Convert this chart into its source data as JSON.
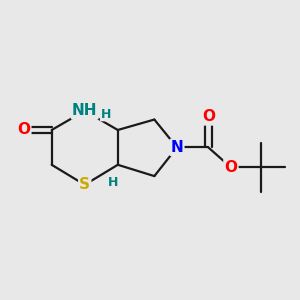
{
  "bg_color": "#e8e8e8",
  "atom_colors": {
    "O": "#ff0000",
    "N": "#0000ff",
    "S": "#ccaa00",
    "C": "#000000",
    "H": "#008080"
  },
  "bond_color": "#1a1a1a",
  "bond_width": 1.6,
  "font_size_atoms": 11,
  "font_size_h": 9,
  "figsize": [
    3.0,
    3.0
  ],
  "dpi": 100
}
